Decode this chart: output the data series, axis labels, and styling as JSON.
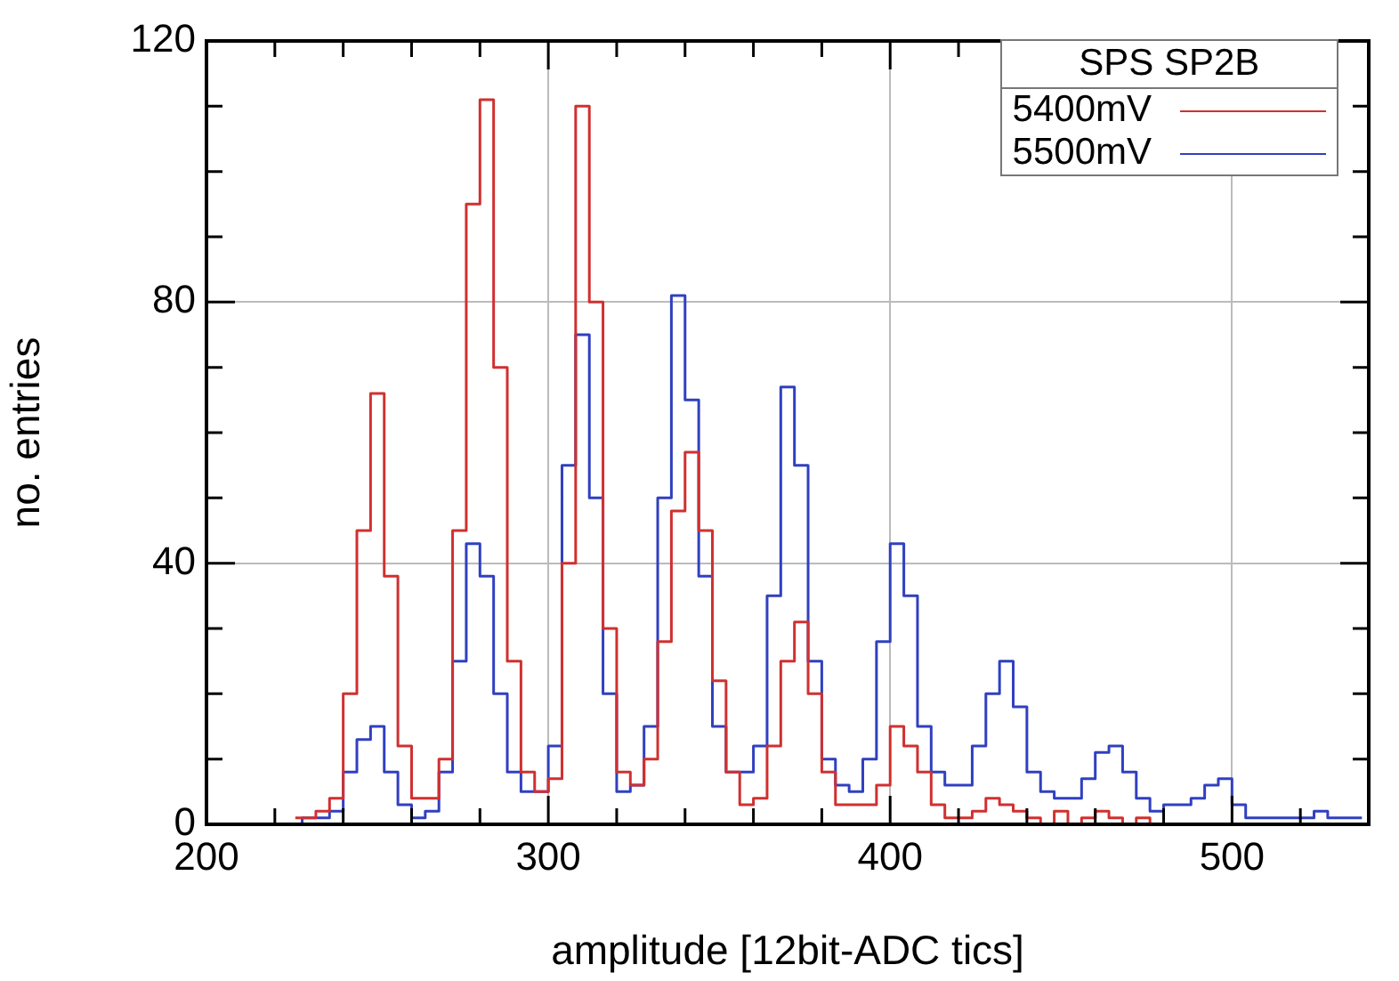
{
  "chart_data": {
    "type": "step",
    "xlabel": "amplitude [12bit-ADC tics]",
    "ylabel": "no. entries",
    "legend_title": "SPS SP2B",
    "legend": "top right",
    "grid": true,
    "x": [
      226,
      230,
      234,
      238,
      242,
      246,
      250,
      254,
      258,
      262,
      266,
      270,
      274,
      278,
      282,
      286,
      290,
      294,
      298,
      302,
      306,
      310,
      314,
      318,
      322,
      326,
      330,
      334,
      338,
      342,
      346,
      350,
      354,
      358,
      362,
      366,
      370,
      374,
      378,
      382,
      386,
      390,
      394,
      398,
      402,
      406,
      410,
      414,
      418,
      422,
      426,
      430,
      434,
      438,
      442,
      446,
      450,
      454,
      458,
      462,
      466,
      470,
      474,
      478,
      482,
      486,
      490,
      494,
      498,
      502,
      506,
      510,
      514,
      518,
      522,
      526,
      530,
      534,
      538
    ],
    "series": [
      {
        "name": "5400mV",
        "color": "#d03030",
        "values": [
          1,
          1,
          2,
          4,
          20,
          45,
          66,
          38,
          12,
          4,
          4,
          10,
          45,
          95,
          111,
          70,
          25,
          8,
          5,
          7,
          40,
          110,
          80,
          30,
          8,
          6,
          10,
          28,
          48,
          57,
          45,
          22,
          8,
          3,
          4,
          12,
          25,
          31,
          20,
          8,
          3,
          3,
          3,
          6,
          15,
          12,
          8,
          3,
          1,
          1,
          2,
          4,
          3,
          2,
          1,
          0,
          2,
          0,
          1,
          2,
          1,
          0,
          1,
          0,
          null,
          null,
          null,
          null,
          null,
          null,
          null,
          null,
          null,
          null,
          null,
          null,
          null,
          null,
          null
        ]
      },
      {
        "name": "5500mV",
        "color": "#3040c0",
        "values": [
          0,
          1,
          1,
          2,
          8,
          13,
          15,
          8,
          3,
          1,
          2,
          8,
          25,
          43,
          38,
          20,
          8,
          5,
          5,
          12,
          55,
          75,
          50,
          20,
          5,
          6,
          15,
          50,
          81,
          65,
          38,
          15,
          8,
          8,
          12,
          35,
          67,
          55,
          25,
          10,
          6,
          5,
          10,
          28,
          43,
          35,
          15,
          8,
          6,
          6,
          12,
          20,
          25,
          18,
          8,
          5,
          4,
          4,
          7,
          11,
          12,
          8,
          4,
          2,
          3,
          3,
          4,
          6,
          7,
          3,
          1,
          1,
          1,
          1,
          1,
          2,
          1,
          1,
          1
        ]
      }
    ],
    "xlim": [
      200,
      540
    ],
    "ylim": [
      0,
      120
    ],
    "xticks": [
      200,
      {
        "value": 220,
        "label": null
      },
      {
        "value": 240,
        "label": null
      },
      {
        "value": 260,
        "label": null
      },
      {
        "value": 280,
        "label": null
      },
      300,
      {
        "value": 320,
        "label": null
      },
      {
        "value": 340,
        "label": null
      },
      {
        "value": 360,
        "label": null
      },
      {
        "value": 380,
        "label": null
      },
      400,
      {
        "value": 420,
        "label": null
      },
      {
        "value": 440,
        "label": null
      },
      {
        "value": 460,
        "label": null
      },
      {
        "value": 480,
        "label": null
      },
      500,
      {
        "value": 520,
        "label": null
      },
      {
        "value": 540,
        "label": null
      }
    ],
    "yticks": [
      0,
      {
        "value": 10,
        "label": null
      },
      {
        "value": 20,
        "label": null
      },
      {
        "value": 30,
        "label": null
      },
      40,
      {
        "value": 50,
        "label": null
      },
      {
        "value": 60,
        "label": null
      },
      {
        "value": 70,
        "label": null
      },
      80,
      {
        "value": 90,
        "label": null
      },
      {
        "value": 100,
        "label": null
      },
      {
        "value": 110,
        "label": null
      },
      120
    ]
  }
}
